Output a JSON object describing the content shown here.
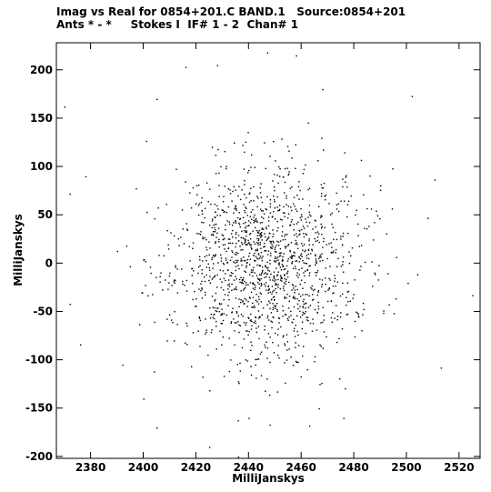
{
  "chart_data": {
    "type": "scatter",
    "title": "Imag vs Real for 0854+201.C BAND.1   Source:0854+201",
    "subtitle": "Ants * - *     Stokes I  IF# 1 - 2  Chan# 1",
    "xlabel": "MilliJanskys",
    "ylabel": "MilliJanskys",
    "xlim": [
      2367,
      2528
    ],
    "ylim": [
      -202,
      228
    ],
    "x_ticks": [
      2380,
      2400,
      2420,
      2440,
      2460,
      2480,
      2500,
      2520
    ],
    "y_ticks": [
      -200,
      -150,
      -100,
      -50,
      0,
      50,
      100,
      150,
      200
    ],
    "x_tick_labels": [
      "2380",
      "2400",
      "2420",
      "2440",
      "2460",
      "2480",
      "2500",
      "2520"
    ],
    "y_tick_labels": [
      "-200",
      "-150",
      "-100",
      "-50",
      "0",
      "50",
      "100",
      "150",
      "200"
    ],
    "grid": false,
    "marker_color": "#000000",
    "points_approx": 1500,
    "distribution": {
      "center": [
        2447,
        0
      ],
      "sd": [
        18,
        50
      ]
    },
    "outliers": [
      [
        2370,
        162
      ],
      [
        2372,
        72
      ],
      [
        2378,
        90
      ],
      [
        2372,
        -42
      ],
      [
        2376,
        -84
      ],
      [
        2405,
        170
      ],
      [
        2416,
        203
      ],
      [
        2428,
        205
      ],
      [
        2447,
        218
      ],
      [
        2458,
        215
      ],
      [
        2468,
        180
      ],
      [
        2502,
        173
      ],
      [
        2513,
        -108
      ],
      [
        2525,
        -33
      ],
      [
        2508,
        47
      ],
      [
        2404,
        -112
      ],
      [
        2405,
        -170
      ],
      [
        2425,
        -190
      ],
      [
        2440,
        -160
      ],
      [
        2448,
        -167
      ],
      [
        2463,
        -168
      ],
      [
        2476,
        -160
      ],
      [
        2392,
        -105
      ],
      [
        2400,
        -140
      ],
      [
        2436,
        -200
      ]
    ]
  }
}
